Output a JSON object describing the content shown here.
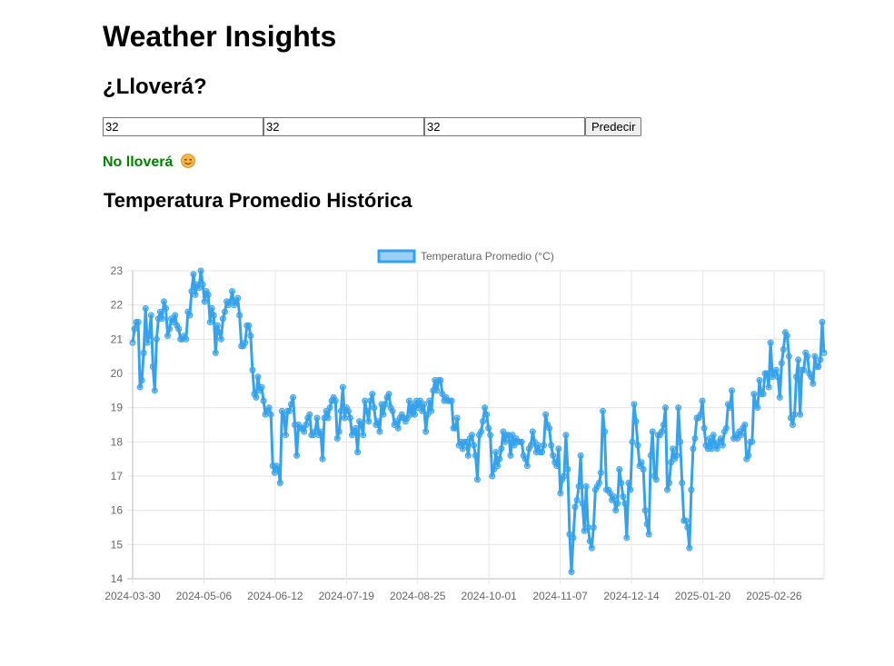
{
  "header": {
    "title": "Weather Insights",
    "subtitle": "¿Lloverá?"
  },
  "form": {
    "inputs": [
      "32",
      "32",
      "32"
    ],
    "button_label": "Predecir"
  },
  "result": {
    "text": "No lloverá",
    "emoji": "smiling-face-emoji",
    "color": "#008000"
  },
  "chart_section": {
    "title": "Temperatura Promedio Histórica"
  },
  "chart_data": {
    "type": "line",
    "title": "",
    "xlabel": "",
    "ylabel": "",
    "ylim": [
      14,
      23
    ],
    "y_ticks": [
      "14",
      "15",
      "16",
      "17",
      "18",
      "19",
      "20",
      "21",
      "22",
      "23"
    ],
    "x_ticks": [
      "2024-03-30",
      "2024-05-06",
      "2024-06-12",
      "2024-07-19",
      "2024-08-25",
      "2024-10-01",
      "2024-11-07",
      "2024-12-14",
      "2025-01-20",
      "2025-02-26"
    ],
    "start_date": "2024-03-30",
    "end_date": "2025-03-24",
    "grid": true,
    "legend_position": "top",
    "series": [
      {
        "name": "Temperatura Promedio (°C)",
        "color": "#36a2eb",
        "values": [
          20.9,
          21.3,
          21.5,
          21.5,
          19.6,
          19.8,
          20.6,
          21.9,
          20.9,
          21.1,
          21.7,
          20.2,
          19.5,
          21.0,
          21.6,
          21.8,
          21.6,
          22.1,
          21.9,
          21.1,
          21.3,
          21.6,
          21.5,
          21.7,
          21.4,
          21.3,
          21.0,
          21.0,
          21.1,
          21.0,
          21.8,
          21.7,
          22.4,
          22.9,
          22.3,
          22.6,
          22.5,
          23.0,
          22.6,
          22.1,
          22.4,
          22.3,
          21.5,
          21.9,
          21.7,
          20.6,
          21.4,
          21.2,
          21.0,
          21.6,
          21.8,
          22.1,
          22.0,
          22.1,
          22.4,
          22.0,
          22.1,
          22.2,
          21.7,
          20.8,
          20.8,
          20.9,
          21.4,
          21.4,
          21.1,
          20.1,
          19.4,
          19.3,
          19.9,
          19.5,
          19.6,
          19.2,
          18.8,
          18.9,
          19.0,
          18.8,
          17.3,
          17.1,
          17.3,
          17.2,
          16.8,
          18.9,
          18.8,
          18.2,
          18.9,
          18.9,
          19.1,
          19.3,
          18.5,
          17.6,
          18.5,
          18.4,
          18.4,
          18.3,
          18.5,
          18.7,
          18.8,
          18.2,
          18.2,
          18.3,
          18.7,
          18.2,
          18.3,
          17.5,
          18.7,
          18.9,
          18.7,
          19.0,
          19.2,
          19.3,
          19.2,
          18.1,
          18.3,
          18.9,
          19.6,
          18.7,
          19.0,
          18.9,
          18.7,
          18.2,
          18.3,
          18.4,
          17.7,
          18.6,
          18.5,
          18.2,
          19.2,
          18.9,
          18.6,
          19.2,
          19.4,
          19.0,
          18.5,
          18.6,
          18.3,
          19.1,
          18.8,
          19.1,
          19.3,
          19.4,
          19.0,
          18.9,
          18.5,
          18.6,
          18.4,
          18.7,
          18.8,
          18.7,
          18.6,
          18.7,
          19.2,
          18.8,
          19.1,
          18.8,
          19.2,
          19.0,
          19.2,
          18.9,
          19.1,
          18.3,
          18.8,
          19.2,
          18.9,
          19.5,
          19.8,
          19.5,
          19.8,
          19.8,
          19.4,
          19.2,
          19.3,
          19.2,
          19.2,
          19.2,
          18.4,
          18.4,
          18.7,
          17.9,
          18.0,
          17.8,
          18.0,
          18.0,
          17.6,
          18.1,
          18.2,
          17.9,
          17.6,
          16.9,
          18.2,
          18.3,
          18.6,
          19.0,
          18.8,
          18.4,
          18.2,
          17.0,
          17.2,
          17.7,
          17.3,
          17.5,
          17.8,
          18.3,
          18.0,
          18.2,
          18.2,
          17.6,
          18.2,
          17.9,
          18.1,
          18.0,
          18.0,
          18.0,
          17.6,
          17.5,
          17.3,
          17.8,
          17.9,
          18.3,
          18.0,
          17.7,
          17.9,
          17.7,
          17.7,
          17.9,
          18.8,
          18.5,
          18.4,
          17.9,
          17.6,
          17.4,
          17.3,
          17.8,
          16.5,
          16.9,
          17.0,
          18.2,
          17.2,
          15.3,
          14.2,
          15.2,
          16.1,
          16.3,
          16.7,
          17.6,
          16.2,
          15.4,
          16.7,
          15.5,
          15.1,
          14.9,
          15.5,
          16.6,
          16.7,
          16.8,
          17.1,
          18.9,
          18.3,
          16.6,
          16.6,
          16.5,
          16.3,
          16.4,
          16.0,
          16.2,
          17.2,
          16.8,
          16.4,
          16.2,
          15.2,
          16.8,
          16.6,
          18.0,
          19.1,
          18.6,
          17.9,
          17.3,
          17.4,
          17.2,
          16.0,
          15.6,
          15.3,
          17.6,
          18.3,
          17.0,
          16.9,
          18.2,
          18.2,
          18.3,
          18.5,
          19.0,
          16.6,
          16.8,
          17.4,
          17.8,
          17.5,
          17.6,
          19.0,
          18.0,
          16.8,
          15.7,
          15.7,
          15.5,
          14.9,
          16.6,
          17.8,
          18.1,
          18.7,
          18.7,
          18.8,
          19.2,
          18.4,
          17.9,
          17.8,
          18.1,
          17.8,
          18.2,
          17.9,
          17.8,
          18.0,
          18.1,
          17.9,
          18.3,
          18.4,
          19.1,
          19.0,
          19.5,
          18.1,
          18.2,
          18.1,
          18.3,
          18.2,
          18.4,
          18.5,
          17.5,
          17.6,
          18.0,
          18.0,
          19.4,
          19.1,
          19.0,
          19.8,
          19.4,
          19.4,
          20.0,
          20.0,
          19.6,
          20.9,
          19.9,
          20.0,
          20.1,
          19.9,
          19.3,
          20.3,
          20.7,
          21.2,
          21.1,
          20.5,
          18.7,
          18.5,
          18.8,
          19.9,
          20.4,
          18.8,
          20.1,
          20.1,
          20.6,
          20.5,
          20.0,
          19.9,
          19.7,
          20.5,
          20.2,
          20.2,
          20.4,
          21.5,
          20.6
        ]
      }
    ]
  }
}
